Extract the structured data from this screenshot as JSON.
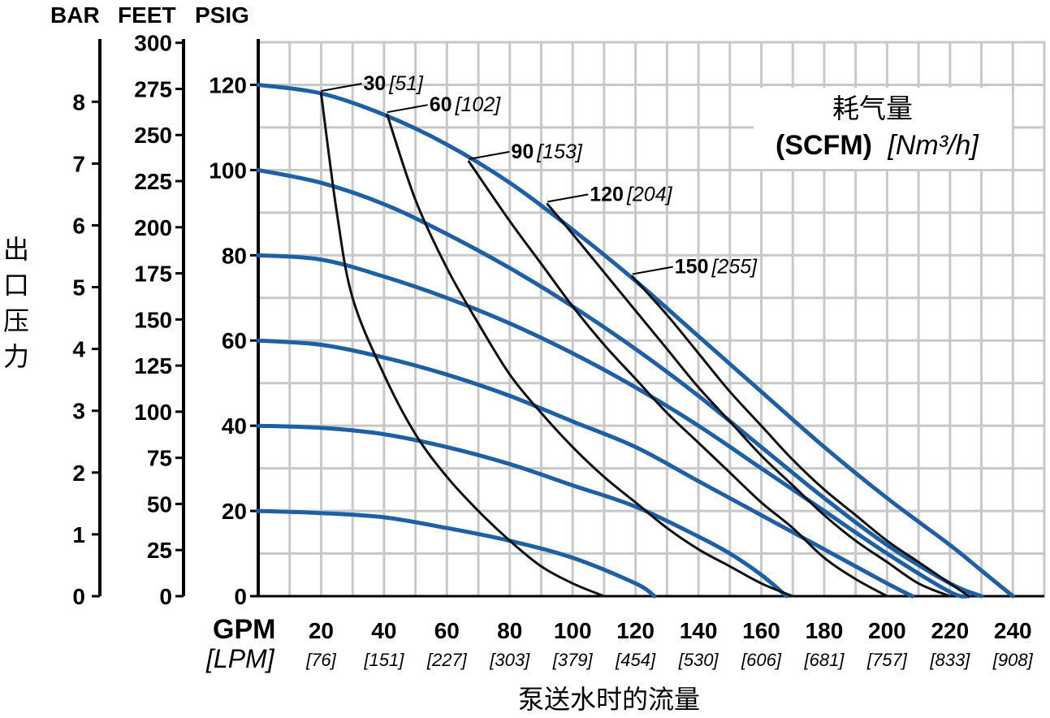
{
  "chart_data": {
    "type": "line",
    "title": "",
    "xlabel": "泵送水时的流量",
    "x_unit_primary": "GPM",
    "x_unit_secondary": "[LPM]",
    "xlim": [
      0,
      250
    ],
    "ylim_psig": [
      0,
      130
    ],
    "grid": true,
    "ylabel": "出口压力",
    "y_scales": [
      {
        "unit": "BAR",
        "ticks": [
          "0",
          "1",
          "2",
          "3",
          "4",
          "5",
          "6",
          "7",
          "8"
        ]
      },
      {
        "unit": "FEET",
        "ticks": [
          "0",
          "25",
          "50",
          "75",
          "100",
          "125",
          "150",
          "175",
          "200",
          "225",
          "250",
          "275",
          "300"
        ]
      },
      {
        "unit": "PSIG",
        "ticks": [
          "0",
          "20",
          "40",
          "60",
          "80",
          "100",
          "120"
        ]
      }
    ],
    "x_ticks": [
      {
        "gpm": 20,
        "label": "20",
        "lpm": "[76]"
      },
      {
        "gpm": 40,
        "label": "40",
        "lpm": "[151]"
      },
      {
        "gpm": 60,
        "label": "60",
        "lpm": "[227]"
      },
      {
        "gpm": 80,
        "label": "80",
        "lpm": "[303]"
      },
      {
        "gpm": 100,
        "label": "100",
        "lpm": "[379]"
      },
      {
        "gpm": 120,
        "label": "120",
        "lpm": "[454]"
      },
      {
        "gpm": 140,
        "label": "140",
        "lpm": "[530]"
      },
      {
        "gpm": 160,
        "label": "160",
        "lpm": "[606]"
      },
      {
        "gpm": 180,
        "label": "180",
        "lpm": "[681]"
      },
      {
        "gpm": 200,
        "label": "200",
        "lpm": "[757]"
      },
      {
        "gpm": 220,
        "label": "220",
        "lpm": "[833]"
      },
      {
        "gpm": 240,
        "label": "240",
        "lpm": "[908]"
      }
    ],
    "legend": {
      "title": "耗气量",
      "unit": "(SCFM)",
      "unit_metric": "[Nm³/h]",
      "placement": "top-right"
    },
    "pressure_curves": [
      {
        "outlet_psig": 120,
        "points": [
          [
            0,
            120
          ],
          [
            20,
            118
          ],
          [
            40,
            113
          ],
          [
            60,
            106
          ],
          [
            80,
            97
          ],
          [
            100,
            86
          ],
          [
            120,
            74
          ],
          [
            140,
            61
          ],
          [
            160,
            48
          ],
          [
            180,
            35
          ],
          [
            200,
            23
          ],
          [
            220,
            12
          ],
          [
            230,
            6
          ],
          [
            240,
            0
          ]
        ]
      },
      {
        "outlet_psig": 100,
        "points": [
          [
            0,
            100
          ],
          [
            20,
            97
          ],
          [
            40,
            92
          ],
          [
            60,
            85
          ],
          [
            80,
            77
          ],
          [
            100,
            68
          ],
          [
            120,
            58
          ],
          [
            140,
            47
          ],
          [
            160,
            35
          ],
          [
            180,
            23
          ],
          [
            200,
            12
          ],
          [
            220,
            3
          ],
          [
            230,
            0
          ]
        ]
      },
      {
        "outlet_psig": 80,
        "points": [
          [
            0,
            80
          ],
          [
            20,
            79
          ],
          [
            40,
            75
          ],
          [
            60,
            70
          ],
          [
            80,
            64
          ],
          [
            100,
            57
          ],
          [
            120,
            49
          ],
          [
            140,
            40
          ],
          [
            160,
            30
          ],
          [
            180,
            20
          ],
          [
            200,
            10
          ],
          [
            220,
            1
          ],
          [
            226,
            0
          ]
        ]
      },
      {
        "outlet_psig": 60,
        "points": [
          [
            0,
            60
          ],
          [
            20,
            59
          ],
          [
            40,
            56
          ],
          [
            60,
            52
          ],
          [
            80,
            47
          ],
          [
            100,
            41
          ],
          [
            120,
            35
          ],
          [
            140,
            27
          ],
          [
            160,
            19
          ],
          [
            180,
            11
          ],
          [
            200,
            3
          ],
          [
            208,
            0
          ]
        ]
      },
      {
        "outlet_psig": 40,
        "points": [
          [
            0,
            40
          ],
          [
            20,
            39.5
          ],
          [
            40,
            38
          ],
          [
            60,
            35
          ],
          [
            80,
            31
          ],
          [
            100,
            26
          ],
          [
            120,
            21
          ],
          [
            140,
            14
          ],
          [
            150,
            10
          ],
          [
            160,
            5
          ],
          [
            168,
            0
          ]
        ]
      },
      {
        "outlet_psig": 20,
        "points": [
          [
            0,
            20
          ],
          [
            20,
            19.5
          ],
          [
            40,
            18.5
          ],
          [
            60,
            16
          ],
          [
            80,
            13
          ],
          [
            100,
            9
          ],
          [
            120,
            3
          ],
          [
            126,
            0
          ]
        ]
      }
    ],
    "air_curves": [
      {
        "scfm": "30",
        "nm3h": "[51]",
        "points": [
          [
            20,
            118
          ],
          [
            25,
            90
          ],
          [
            30,
            70
          ],
          [
            40,
            52
          ],
          [
            50,
            38
          ],
          [
            60,
            28
          ],
          [
            70,
            20
          ],
          [
            80,
            13
          ],
          [
            90,
            7
          ],
          [
            100,
            3
          ],
          [
            110,
            0
          ]
        ]
      },
      {
        "scfm": "60",
        "nm3h": "[102]",
        "points": [
          [
            41,
            113
          ],
          [
            50,
            93
          ],
          [
            60,
            77
          ],
          [
            70,
            64
          ],
          [
            80,
            52
          ],
          [
            90,
            43
          ],
          [
            100,
            35
          ],
          [
            110,
            28
          ],
          [
            120,
            22
          ],
          [
            130,
            16
          ],
          [
            140,
            11
          ],
          [
            150,
            7
          ],
          [
            160,
            3
          ],
          [
            170,
            0
          ]
        ]
      },
      {
        "scfm": "90",
        "nm3h": "[153]",
        "points": [
          [
            67,
            102
          ],
          [
            80,
            88
          ],
          [
            90,
            78
          ],
          [
            100,
            68
          ],
          [
            110,
            59
          ],
          [
            120,
            51
          ],
          [
            130,
            43
          ],
          [
            140,
            36
          ],
          [
            150,
            29
          ],
          [
            160,
            22
          ],
          [
            170,
            16
          ],
          [
            180,
            9
          ],
          [
            190,
            4
          ],
          [
            200,
            0
          ]
        ]
      },
      {
        "scfm": "120",
        "nm3h": "[204]",
        "points": [
          [
            92,
            92
          ],
          [
            100,
            85
          ],
          [
            110,
            76
          ],
          [
            120,
            67
          ],
          [
            130,
            58
          ],
          [
            140,
            49
          ],
          [
            150,
            41
          ],
          [
            160,
            33
          ],
          [
            170,
            26
          ],
          [
            180,
            19
          ],
          [
            190,
            13
          ],
          [
            200,
            8
          ],
          [
            210,
            3
          ],
          [
            220,
            0
          ]
        ]
      },
      {
        "scfm": "150",
        "nm3h": "[255]",
        "points": [
          [
            119,
            75
          ],
          [
            130,
            66
          ],
          [
            140,
            57
          ],
          [
            150,
            48
          ],
          [
            160,
            40
          ],
          [
            170,
            32
          ],
          [
            180,
            25
          ],
          [
            190,
            19
          ],
          [
            200,
            13
          ],
          [
            210,
            8
          ],
          [
            220,
            3
          ],
          [
            226,
            0
          ]
        ]
      }
    ],
    "colors": {
      "pressure": "#1f5fa3",
      "air": "#111111",
      "grid": "#c8c8c8",
      "axis": "#000000"
    }
  }
}
